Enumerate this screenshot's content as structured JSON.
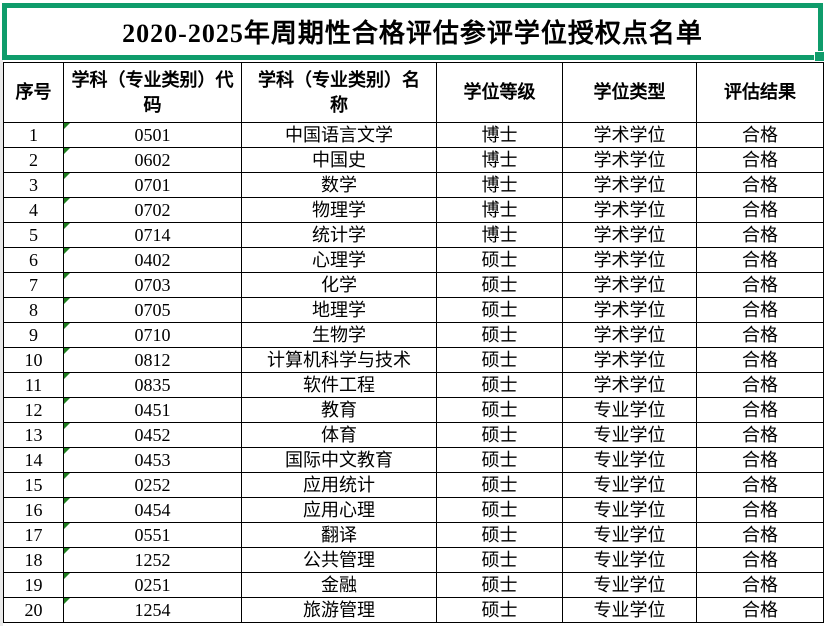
{
  "title": "2020-2025年周期性合格评估参评学位授权点名单",
  "colors": {
    "selection_green": "#0f9c6b",
    "indicator_green": "#1e7e1e",
    "grid_line": "#000000"
  },
  "table": {
    "headers": [
      "序号",
      "学科（专业类别）代\n码",
      "学科（专业类别）名\n称",
      "学位等级",
      "学位类型",
      "评估结果"
    ],
    "col_names": [
      "row-number",
      "subject-code",
      "subject-name",
      "degree-level",
      "degree-type",
      "evaluation-result"
    ],
    "rows": [
      [
        "1",
        "0501",
        "中国语言文学",
        "博士",
        "学术学位",
        "合格"
      ],
      [
        "2",
        "0602",
        "中国史",
        "博士",
        "学术学位",
        "合格"
      ],
      [
        "3",
        "0701",
        "数学",
        "博士",
        "学术学位",
        "合格"
      ],
      [
        "4",
        "0702",
        "物理学",
        "博士",
        "学术学位",
        "合格"
      ],
      [
        "5",
        "0714",
        "统计学",
        "博士",
        "学术学位",
        "合格"
      ],
      [
        "6",
        "0402",
        "心理学",
        "硕士",
        "学术学位",
        "合格"
      ],
      [
        "7",
        "0703",
        "化学",
        "硕士",
        "学术学位",
        "合格"
      ],
      [
        "8",
        "0705",
        "地理学",
        "硕士",
        "学术学位",
        "合格"
      ],
      [
        "9",
        "0710",
        "生物学",
        "硕士",
        "学术学位",
        "合格"
      ],
      [
        "10",
        "0812",
        "计算机科学与技术",
        "硕士",
        "学术学位",
        "合格"
      ],
      [
        "11",
        "0835",
        "软件工程",
        "硕士",
        "学术学位",
        "合格"
      ],
      [
        "12",
        "0451",
        "教育",
        "硕士",
        "专业学位",
        "合格"
      ],
      [
        "13",
        "0452",
        "体育",
        "硕士",
        "专业学位",
        "合格"
      ],
      [
        "14",
        "0453",
        "国际中文教育",
        "硕士",
        "专业学位",
        "合格"
      ],
      [
        "15",
        "0252",
        "应用统计",
        "硕士",
        "专业学位",
        "合格"
      ],
      [
        "16",
        "0454",
        "应用心理",
        "硕士",
        "专业学位",
        "合格"
      ],
      [
        "17",
        "0551",
        "翻译",
        "硕士",
        "专业学位",
        "合格"
      ],
      [
        "18",
        "1252",
        "公共管理",
        "硕士",
        "专业学位",
        "合格"
      ],
      [
        "19",
        "0251",
        "金融",
        "硕士",
        "专业学位",
        "合格"
      ],
      [
        "20",
        "1254",
        "旅游管理",
        "硕士",
        "专业学位",
        "合格"
      ]
    ]
  }
}
